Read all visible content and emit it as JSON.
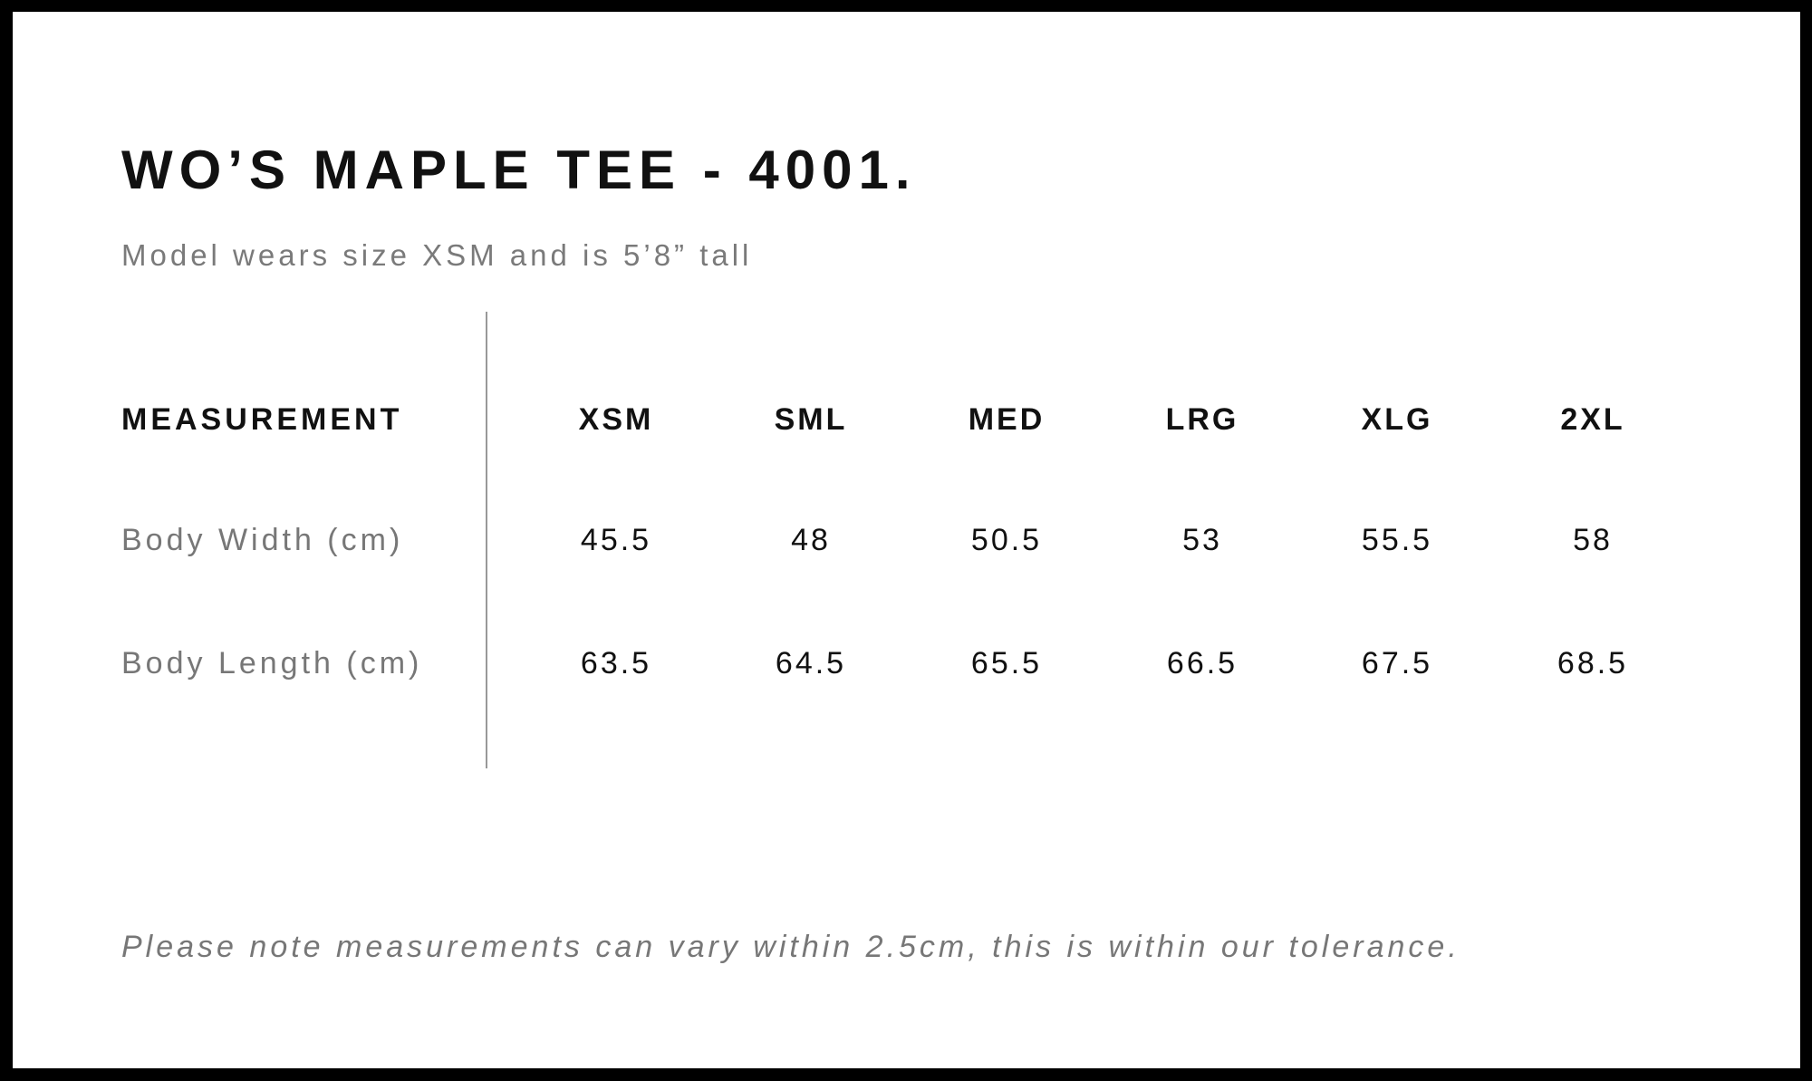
{
  "title": "WO’S MAPLE TEE - 4001.",
  "subtitle": "Model wears size XSM and is 5’8” tall",
  "table": {
    "header": "MEASUREMENT",
    "sizes": [
      "XSM",
      "SML",
      "MED",
      "LRG",
      "XLG",
      "2XL"
    ],
    "rows": [
      {
        "label": "Body Width (cm)",
        "values": [
          "45.5",
          "48",
          "50.5",
          "53",
          "55.5",
          "58"
        ]
      },
      {
        "label": "Body Length (cm)",
        "values": [
          "63.5",
          "64.5",
          "65.5",
          "66.5",
          "67.5",
          "68.5"
        ]
      }
    ]
  },
  "footer": "Please note measurements can vary within 2.5cm, this is within our tolerance."
}
